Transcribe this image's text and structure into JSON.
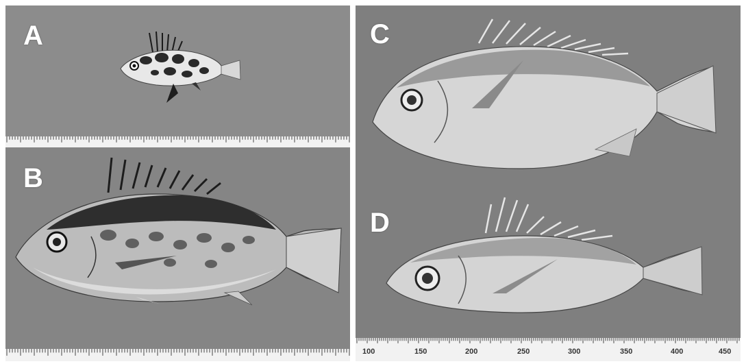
{
  "figure": {
    "panels": [
      {
        "id": "A",
        "label": "A",
        "subject": "juvenile fish, mottled dark pattern"
      },
      {
        "id": "B",
        "label": "B",
        "subject": "subadult fish, mottled dark back"
      },
      {
        "id": "C",
        "label": "C",
        "subject": "large deep-bodied pale fish"
      },
      {
        "id": "D",
        "label": "D",
        "subject": "adult pale fish with large eye"
      }
    ],
    "ruler_bottom_right": {
      "labels": [
        "100",
        "150",
        "200",
        "250",
        "300",
        "350",
        "400",
        "450"
      ]
    },
    "colors": {
      "background_panel": "#848484",
      "ruler": "#f2f2f2",
      "label_text": "#ffffff"
    }
  }
}
